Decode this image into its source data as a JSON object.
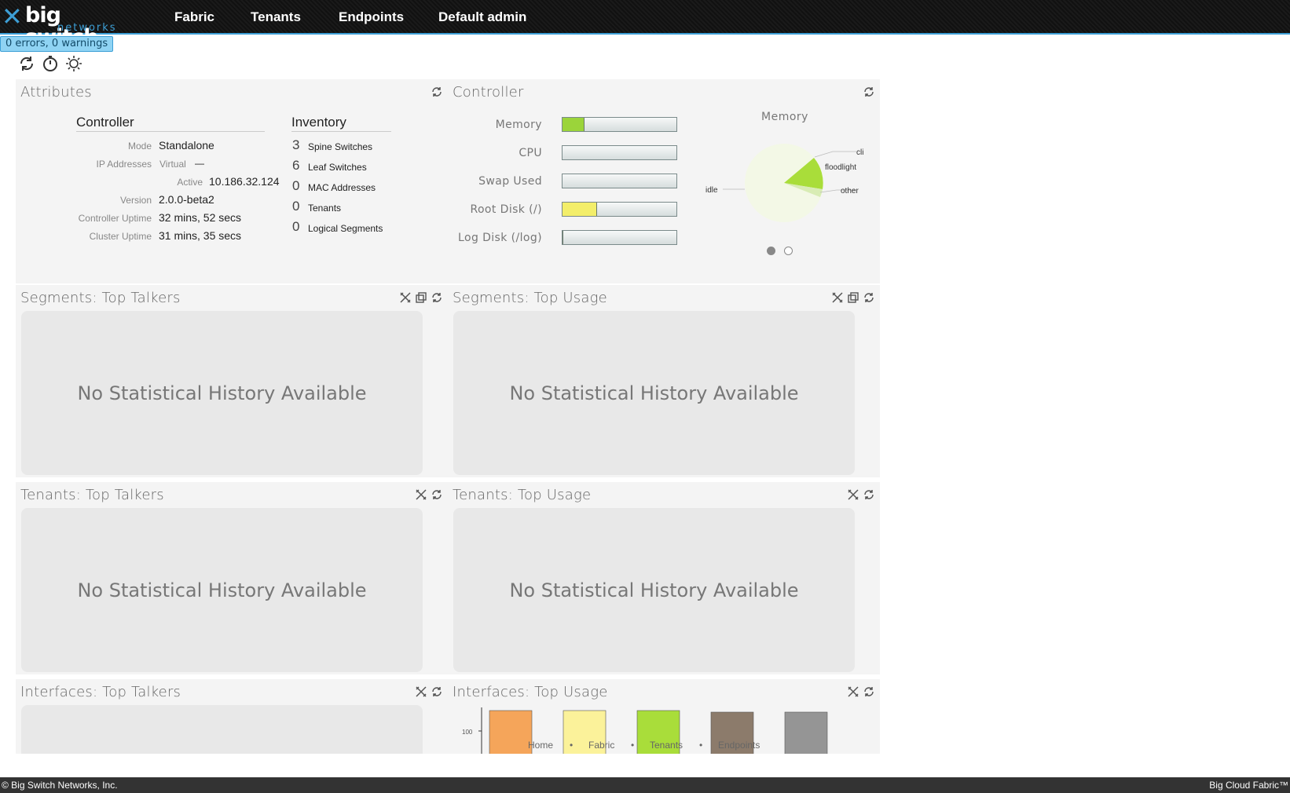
{
  "brand": {
    "mark": "✕",
    "name": "big switch",
    "sub": "networks"
  },
  "nav": {
    "fabric": "Fabric",
    "tenants": "Tenants",
    "endpoints": "Endpoints",
    "user": "Default admin"
  },
  "status": {
    "text": "0 errors, 0 warnings"
  },
  "toolbar": {
    "icons": [
      "refresh-icon",
      "timer-icon",
      "brightness-icon"
    ]
  },
  "attributes": {
    "title": "Attributes",
    "controller": {
      "heading": "Controller",
      "mode_label": "Mode",
      "mode": "Standalone",
      "ip_label": "IP Addresses",
      "virtual_label": "Virtual",
      "virtual": "—",
      "active_label": "Active",
      "active": "10.186.32.124",
      "version_label": "Version",
      "version": "2.0.0-beta2",
      "uptime_label": "Controller Uptime",
      "uptime": "32 mins, 52 secs",
      "cluster_label": "Cluster Uptime",
      "cluster": "31 mins, 35 secs"
    },
    "inventory": {
      "heading": "Inventory",
      "items": [
        {
          "count": "3",
          "label": "Spine Switches"
        },
        {
          "count": "6",
          "label": "Leaf Switches"
        },
        {
          "count": "0",
          "label": "MAC Addresses"
        },
        {
          "count": "0",
          "label": "Tenants"
        },
        {
          "count": "0",
          "label": "Logical Segments"
        }
      ]
    }
  },
  "controller": {
    "title": "Controller",
    "bars": [
      {
        "label": "Memory",
        "fraction": 0.19,
        "color": "#9bd43a"
      },
      {
        "label": "CPU",
        "fraction": 0.0,
        "color": "#9bd43a"
      },
      {
        "label": "Swap Used",
        "fraction": 0.0,
        "color": "#9bd43a"
      },
      {
        "label": "Root Disk (/)",
        "fraction": 0.3,
        "color": "#f3ee6a"
      },
      {
        "label": "Log Disk (/log)",
        "fraction": 0.01,
        "color": "#555555"
      }
    ],
    "pie": {
      "title": "Memory",
      "labels": {
        "cli": "cli",
        "floodlight": "floodlight",
        "idle": "idle",
        "other": "other"
      },
      "colors": {
        "idle": "#f3f8e6",
        "floodlight": "#a9dd3a",
        "other": "#d8ecb4"
      },
      "pager": {
        "pages": 2,
        "active": 0
      }
    }
  },
  "panels": {
    "seg_talkers": {
      "title": "Segments: Top Talkers",
      "message": "No Statistical History Available"
    },
    "seg_usage": {
      "title": "Segments: Top Usage",
      "message": "No Statistical History Available"
    },
    "ten_talkers": {
      "title": "Tenants: Top Talkers",
      "message": "No Statistical History Available"
    },
    "ten_usage": {
      "title": "Tenants: Top Usage",
      "message": "No Statistical History Available"
    },
    "if_talkers": {
      "title": "Interfaces: Top Talkers"
    },
    "if_usage": {
      "title": "Interfaces: Top Usage"
    }
  },
  "chart_data": {
    "type": "bar",
    "title": "Interfaces: Top Usage",
    "ytick": "100",
    "categories": [
      "",
      "",
      "",
      "",
      ""
    ],
    "colors": [
      "#f5a55a",
      "#fbf29a",
      "#a9dd3a",
      "#8c7b6b",
      "#959595"
    ]
  },
  "footer_nav": {
    "home": "Home",
    "fabric": "Fabric",
    "tenants": "Tenants",
    "endpoints": "Endpoints",
    "sep": "•"
  },
  "footer": {
    "left": "© Big Switch Networks, Inc.",
    "right": "Big Cloud Fabric™"
  }
}
